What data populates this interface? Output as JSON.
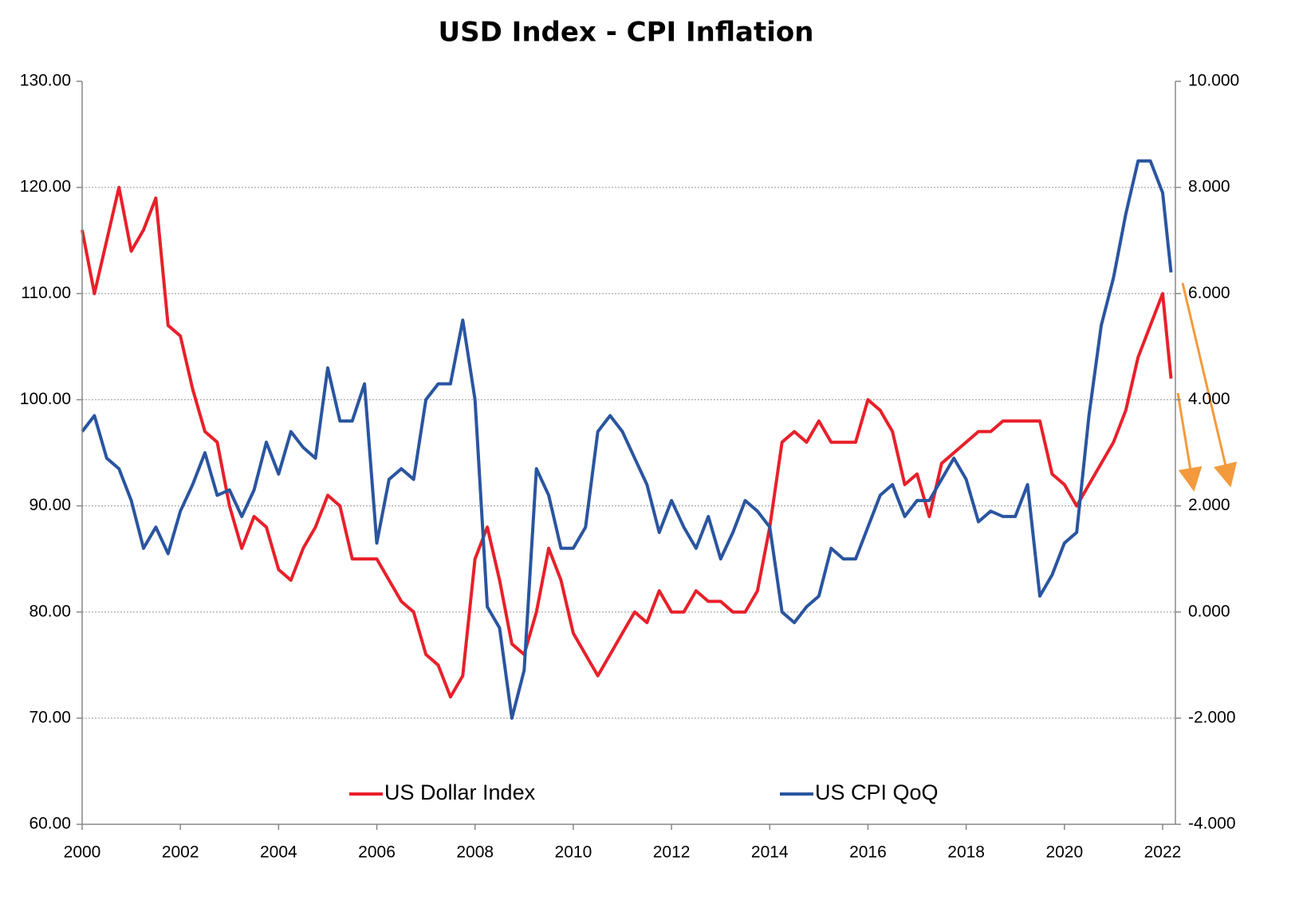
{
  "chart_data": {
    "type": "line",
    "title": "USD Index - CPI Inflation",
    "x": [
      2000,
      2000.25,
      2000.5,
      2000.75,
      2001,
      2001.25,
      2001.5,
      2001.75,
      2002,
      2002.25,
      2002.5,
      2002.75,
      2003,
      2003.25,
      2003.5,
      2003.75,
      2004,
      2004.25,
      2004.5,
      2004.75,
      2005,
      2005.25,
      2005.5,
      2005.75,
      2006,
      2006.25,
      2006.5,
      2006.75,
      2007,
      2007.25,
      2007.5,
      2007.75,
      2008,
      2008.25,
      2008.5,
      2008.75,
      2009,
      2009.25,
      2009.5,
      2009.75,
      2010,
      2010.25,
      2010.5,
      2010.75,
      2011,
      2011.25,
      2011.5,
      2011.75,
      2012,
      2012.25,
      2012.5,
      2012.75,
      2013,
      2013.25,
      2013.5,
      2013.75,
      2014,
      2014.25,
      2014.5,
      2014.75,
      2015,
      2015.25,
      2015.5,
      2015.75,
      2016,
      2016.25,
      2016.5,
      2016.75,
      2017,
      2017.25,
      2017.5,
      2017.75,
      2018,
      2018.25,
      2018.5,
      2018.75,
      2019,
      2019.25,
      2019.5,
      2019.75,
      2020,
      2020.25,
      2020.5,
      2020.75,
      2021,
      2021.25,
      2021.5,
      2021.75,
      2022,
      2022.17
    ],
    "series": [
      {
        "name": "US Dollar Index",
        "color": "#e8202a",
        "values": [
          116,
          110,
          115,
          120,
          114,
          116,
          119,
          107,
          106,
          101,
          97,
          96,
          90,
          86,
          89,
          88,
          84,
          83,
          86,
          88,
          91,
          90,
          85,
          85,
          85,
          83,
          81,
          80,
          76,
          75,
          72,
          74,
          85,
          88,
          83,
          77,
          76,
          80,
          86,
          83,
          78,
          76,
          74,
          76,
          78,
          80,
          79,
          82,
          80,
          80,
          82,
          81,
          81,
          80,
          80,
          82,
          88,
          96,
          97,
          96,
          98,
          96,
          96,
          96,
          100,
          99,
          97,
          92,
          93,
          89,
          94,
          95,
          96,
          97,
          97,
          98,
          98,
          98,
          98,
          93,
          92,
          90,
          92,
          94,
          96,
          99,
          104,
          107,
          110,
          102
        ]
      },
      {
        "name": "US CPI QoQ",
        "color": "#2a55a0",
        "axis": "y2",
        "values": [
          3.4,
          3.7,
          2.9,
          2.7,
          2.1,
          1.2,
          1.6,
          1.1,
          1.9,
          2.4,
          3.0,
          2.2,
          2.3,
          1.8,
          2.3,
          3.2,
          2.6,
          3.4,
          3.1,
          2.9,
          4.6,
          3.6,
          3.6,
          4.3,
          1.3,
          2.5,
          2.7,
          2.5,
          4.0,
          4.3,
          4.3,
          5.5,
          4.0,
          0.1,
          -0.3,
          -2.0,
          -1.1,
          2.7,
          2.2,
          1.2,
          1.2,
          1.6,
          3.4,
          3.7,
          3.4,
          2.9,
          2.4,
          1.5,
          2.1,
          1.6,
          1.2,
          1.8,
          1.0,
          1.5,
          2.1,
          1.9,
          1.6,
          0.0,
          -0.2,
          0.1,
          0.3,
          1.2,
          1.0,
          1.0,
          1.6,
          2.2,
          2.4,
          1.8,
          2.1,
          2.1,
          2.5,
          2.9,
          2.5,
          1.7,
          1.9,
          1.8,
          1.8,
          2.4,
          0.3,
          0.7,
          1.3,
          1.5,
          3.7,
          5.4,
          6.3,
          7.5,
          8.5,
          8.5,
          7.9,
          6.4
        ]
      }
    ],
    "xlim": [
      2000,
      2022.26
    ],
    "xticks": [
      2000,
      2002,
      2004,
      2006,
      2008,
      2010,
      2012,
      2014,
      2016,
      2018,
      2020,
      2022
    ],
    "ylim": [
      60,
      130
    ],
    "yticks": [
      {
        "value": 60,
        "label": "60.00"
      },
      {
        "value": 70,
        "label": "70.00"
      },
      {
        "value": 80,
        "label": "80.00"
      },
      {
        "value": 90,
        "label": "90.00"
      },
      {
        "value": 100,
        "label": "100.00"
      },
      {
        "value": 110,
        "label": "110.00"
      },
      {
        "value": 120,
        "label": "120.00"
      },
      {
        "value": 130,
        "label": "130.00"
      }
    ],
    "y2lim": [
      -4,
      10
    ],
    "y2ticks": [
      {
        "value": -4,
        "label": "-4.000"
      },
      {
        "value": -2,
        "label": "-2.000"
      },
      {
        "value": 0,
        "label": "0.000"
      },
      {
        "value": 2,
        "label": "2.000"
      },
      {
        "value": 4,
        "label": "4.000"
      },
      {
        "value": 6,
        "label": "6.000"
      },
      {
        "value": 8,
        "label": "8.000"
      },
      {
        "value": 10,
        "label": "10.000"
      }
    ],
    "grid": true,
    "legend": "bottom"
  }
}
